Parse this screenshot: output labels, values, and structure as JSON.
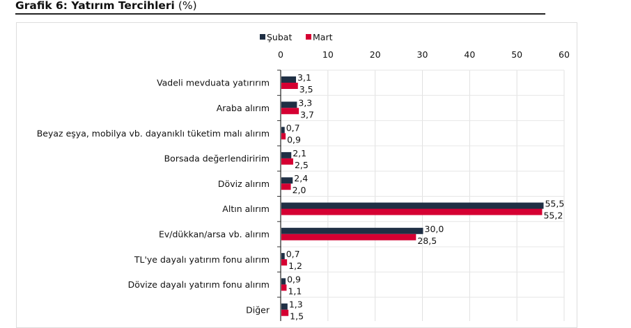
{
  "chart_data": {
    "type": "bar",
    "orientation": "horizontal",
    "title": "Grafik 6: Yatırım Tercihleri",
    "title_unit": "(%)",
    "categories": [
      "Vadeli mevduata yatırırım",
      "Araba alırım",
      "Beyaz eşya, mobilya vb. dayanıklı tüketim malı alırım",
      "Borsada değerlendiririm",
      "Döviz alırım",
      "Altın alırım",
      "Ev/dükkan/arsa vb. alırım",
      "TL'ye dayalı yatırım fonu alırım",
      "Dövize dayalı yatırım fonu alırım",
      "Diğer"
    ],
    "series": [
      {
        "name": "Şubat",
        "color": "#1f2f44",
        "values": [
          3.1,
          3.3,
          0.7,
          2.1,
          2.4,
          55.5,
          30.0,
          0.7,
          0.9,
          1.3
        ],
        "labels": [
          "3,1",
          "3,3",
          "0,7",
          "2,1",
          "2,4",
          "55,5",
          "30,0",
          "0,7",
          "0,9",
          "1,3"
        ]
      },
      {
        "name": "Mart",
        "color": "#d50032",
        "values": [
          3.5,
          3.7,
          0.9,
          2.5,
          2.0,
          55.2,
          28.5,
          1.2,
          1.1,
          1.5
        ],
        "labels": [
          "3,5",
          "3,7",
          "0,9",
          "2,5",
          "2,0",
          "55,2",
          "28,5",
          "1,2",
          "1,1",
          "1,5"
        ]
      }
    ],
    "xlim": [
      0,
      60
    ],
    "xticks": [
      "0",
      "10",
      "20",
      "30",
      "40",
      "50",
      "60"
    ],
    "xtick_values": [
      0,
      10,
      20,
      30,
      40,
      50,
      60
    ],
    "axis_position": "top",
    "grid": true,
    "legend_position": "top"
  }
}
